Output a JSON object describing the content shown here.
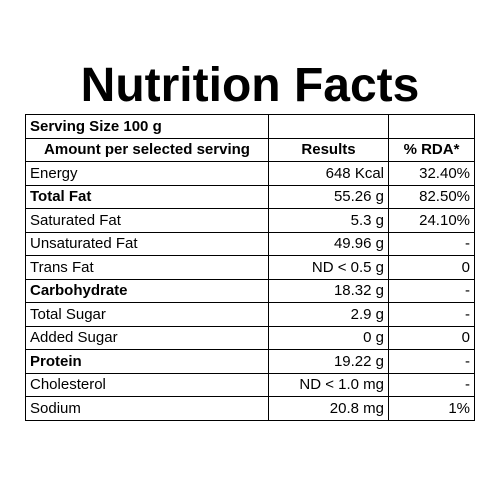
{
  "title": "Nutrition Facts",
  "serving": "Serving Size 100 g",
  "headers": {
    "amount": "Amount per selected serving",
    "results": "Results",
    "rda": "% RDA*"
  },
  "rows": [
    {
      "name": "Energy",
      "result": "648 Kcal",
      "rda": "32.40%"
    },
    {
      "name": "Total Fat",
      "result": "55.26 g",
      "rda": "82.50%"
    },
    {
      "name": "Saturated Fat",
      "result": "5.3 g",
      "rda": "24.10%"
    },
    {
      "name": "Unsaturated Fat",
      "result": "49.96 g",
      "rda": "-"
    },
    {
      "name": "Trans Fat",
      "result": "ND < 0.5 g",
      "rda": "0"
    },
    {
      "name": "Carbohydrate",
      "result": "18.32 g",
      "rda": "-"
    },
    {
      "name": "Total Sugar",
      "result": "2.9 g",
      "rda": "-"
    },
    {
      "name": "Added Sugar",
      "result": "0 g",
      "rda": "0"
    },
    {
      "name": "Protein",
      "result": "19.22 g",
      "rda": "-"
    },
    {
      "name": "Cholesterol",
      "result": "ND < 1.0 mg",
      "rda": "-"
    },
    {
      "name": "Sodium",
      "result": "20.8 mg",
      "rda": "1%"
    }
  ]
}
